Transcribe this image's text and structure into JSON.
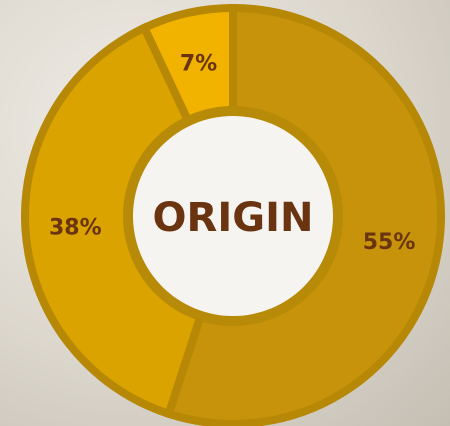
{
  "chart_data": {
    "type": "donut",
    "center_label": "ORIGIN",
    "values": [
      55,
      38,
      7
    ],
    "value_labels": [
      "55%",
      "38%",
      "7%"
    ],
    "colors": [
      "#c6930a",
      "#daa300",
      "#f1b300"
    ]
  }
}
